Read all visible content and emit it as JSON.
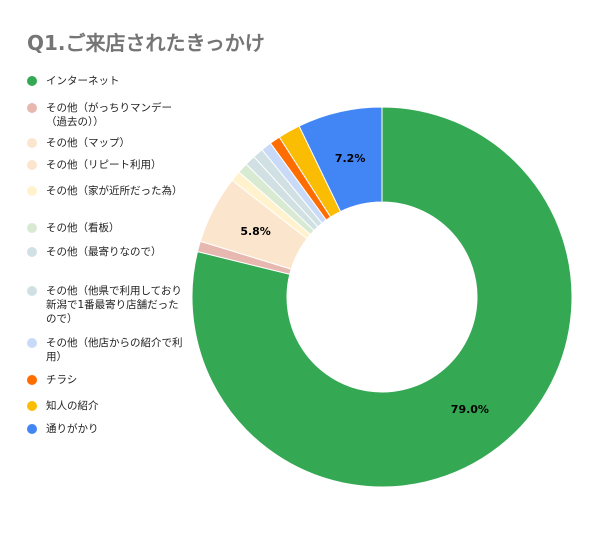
{
  "chart_data": {
    "type": "pie",
    "title": "Q1.ご来店されたきっかけ",
    "donut": true,
    "legend_position": "left",
    "slices": [
      {
        "label": "インターネット",
        "value": 79.0,
        "color": "#34a853",
        "display": "79.0%"
      },
      {
        "label": "その他（がっちりマンデー（過去の））",
        "value": 0.9,
        "color": "#e6b8af",
        "display": ""
      },
      {
        "label": "その他（マップ）",
        "value": 0.0,
        "color": "#fce5cd",
        "display": ""
      },
      {
        "label": "その他（リピート利用）",
        "value": 5.8,
        "color": "#fce5cd",
        "display": "5.8%"
      },
      {
        "label": "その他（家が近所だった為）",
        "value": 0.9,
        "color": "#fff2cc",
        "display": ""
      },
      {
        "label": "その他（看板）",
        "value": 0.9,
        "color": "#d9ead3",
        "display": ""
      },
      {
        "label": "その他（最寄りなので）",
        "value": 0.9,
        "color": "#d0e0e3",
        "display": ""
      },
      {
        "label": "その他（他県で利用しており新潟で1番最寄り店舗だったので）",
        "value": 0.9,
        "color": "#d0e0e3",
        "display": ""
      },
      {
        "label": "その他（他店からの紹介で利用）",
        "value": 0.9,
        "color": "#c9daf8",
        "display": ""
      },
      {
        "label": "チラシ",
        "value": 0.9,
        "color": "#ff6d01",
        "display": ""
      },
      {
        "label": "知人の紹介",
        "value": 1.9,
        "color": "#fbbc04",
        "display": ""
      },
      {
        "label": "通りがかり",
        "value": 7.2,
        "color": "#4285f4",
        "display": "7.2%"
      }
    ]
  }
}
